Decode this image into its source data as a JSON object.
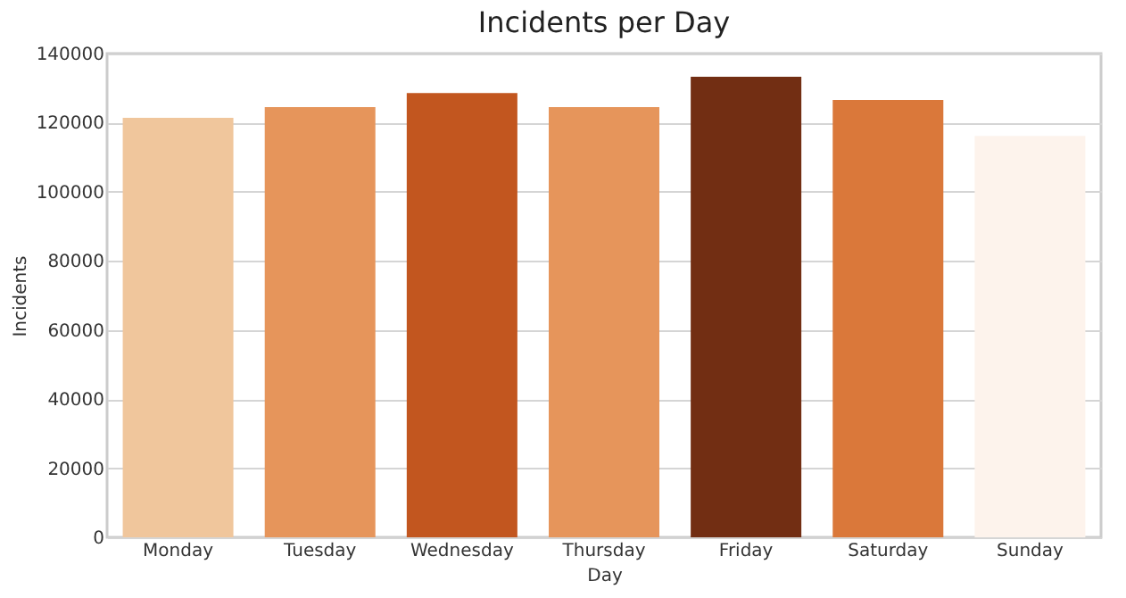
{
  "chart_data": {
    "type": "bar",
    "title": "Incidents per Day",
    "xlabel": "Day",
    "ylabel": "Incidents",
    "categories": [
      "Monday",
      "Tuesday",
      "Wednesday",
      "Thursday",
      "Friday",
      "Saturday",
      "Sunday"
    ],
    "values": [
      121400,
      124500,
      128600,
      124500,
      133300,
      126600,
      116200
    ],
    "colors": [
      "#f0c69c",
      "#e6955b",
      "#c2561f",
      "#e6955b",
      "#722e13",
      "#da783a",
      "#fdf3ec"
    ],
    "ylim": [
      0,
      140000
    ],
    "yticks": [
      0,
      20000,
      40000,
      60000,
      80000,
      100000,
      120000,
      140000
    ],
    "grid": "y"
  }
}
